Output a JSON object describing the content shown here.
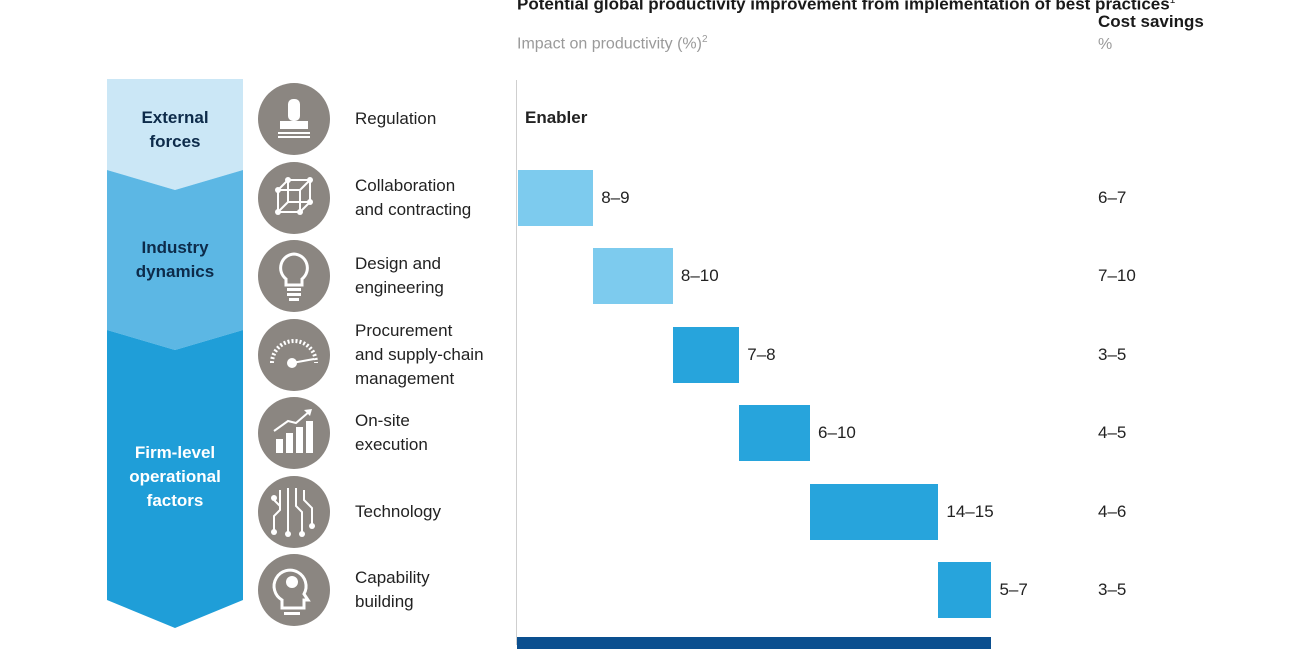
{
  "chart_data": {
    "type": "bar",
    "subtype": "waterfall",
    "title": "Potential global productivity improvement from implementation of best practices",
    "title_footnote": "1",
    "subtitle": "Impact on productivity (%)",
    "subtitle_footnote": "2",
    "cost_header": "Cost savings",
    "cost_unit": "%",
    "groups": [
      {
        "label_lines": [
          "External",
          "forces"
        ],
        "color": "#cbe7f6",
        "text_color": "#0d2b4a"
      },
      {
        "label_lines": [
          "Industry",
          "dynamics"
        ],
        "color": "#5cb7e4",
        "text_color": "#0d2b4a"
      },
      {
        "label_lines": [
          "Firm-level",
          "operational",
          "factors"
        ],
        "color": "#1f9ed8",
        "text_color": "#ffffff"
      }
    ],
    "categories": [
      {
        "icon": "stamp-icon",
        "label_lines": [
          "Regulation"
        ],
        "impact_label": "Enabler",
        "low": null,
        "high": null,
        "cost": "",
        "color": ""
      },
      {
        "icon": "cube-network-icon",
        "label_lines": [
          "Collaboration",
          "and contracting"
        ],
        "impact_label": "8–9",
        "low": 8,
        "high": 9,
        "cost": "6–7",
        "color": "#7dcbee"
      },
      {
        "icon": "lightbulb-icon",
        "label_lines": [
          "Design and",
          "engineering"
        ],
        "impact_label": "8–10",
        "low": 8,
        "high": 10,
        "cost": "7–10",
        "color": "#7dcbee"
      },
      {
        "icon": "gauge-icon",
        "label_lines": [
          "Procurement",
          "and supply-chain",
          "management"
        ],
        "impact_label": "7–8",
        "low": 7,
        "high": 8,
        "cost": "3–5",
        "color": "#27a4dc"
      },
      {
        "icon": "growth-chart-icon",
        "label_lines": [
          "On-site",
          "execution"
        ],
        "impact_label": "6–10",
        "low": 6,
        "high": 10,
        "cost": "4–5",
        "color": "#27a4dc"
      },
      {
        "icon": "circuit-icon",
        "label_lines": [
          "Technology"
        ],
        "impact_label": "14–15",
        "low": 14,
        "high": 15,
        "cost": "4–6",
        "color": "#27a4dc"
      },
      {
        "icon": "head-bulb-icon",
        "label_lines": [
          "Capability",
          "building"
        ],
        "impact_label": "5–7",
        "low": 5,
        "high": 7,
        "cost": "3–5",
        "color": "#27a4dc"
      }
    ],
    "total_color": "#0b4f8f"
  }
}
